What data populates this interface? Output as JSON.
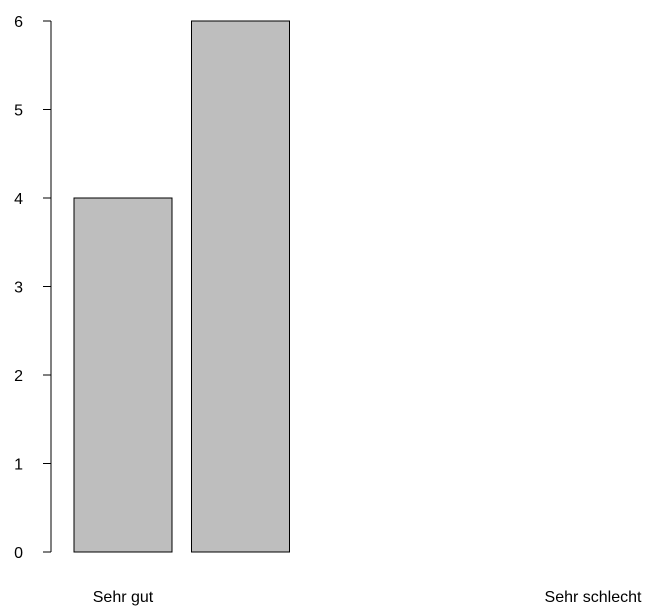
{
  "chart_data": {
    "type": "bar",
    "title": "",
    "xlabel": "",
    "ylabel": "",
    "categories": [
      "",
      "",
      "",
      "",
      ""
    ],
    "category_labels_shown": [
      {
        "index": 0,
        "text": "Sehr gut"
      },
      {
        "index": 4,
        "text": "Sehr schlecht"
      }
    ],
    "values": [
      4,
      6,
      0,
      0,
      0
    ],
    "ylim": [
      0,
      6
    ],
    "yticks": [
      "0",
      "1",
      "2",
      "3",
      "4",
      "5",
      "6"
    ],
    "grid": false,
    "legend": "none",
    "colors": {
      "bar_fill": "#bebebe",
      "bar_stroke": "#000000",
      "axis": "#000000",
      "background": "#ffffff"
    }
  }
}
